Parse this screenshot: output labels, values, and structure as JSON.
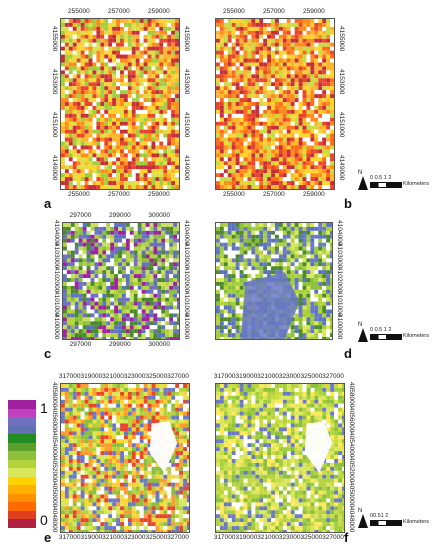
{
  "panels": [
    {
      "id": "a",
      "label": "a",
      "xticks": [
        "255000",
        "257000",
        "259000"
      ],
      "yticks": [
        "4155000",
        "4153000",
        "4151000",
        "4149000"
      ],
      "palette": "warm"
    },
    {
      "id": "b",
      "label": "b",
      "xticks": [
        "255000",
        "257000",
        "259000"
      ],
      "yticks": [
        "4155000",
        "4153000",
        "4151000",
        "4149000"
      ],
      "palette": "warm2"
    },
    {
      "id": "c",
      "label": "c",
      "xticks": [
        "297000",
        "299000",
        "300000"
      ],
      "yticks": [
        "4104000",
        "4103000",
        "4102000",
        "4101000",
        "4100000"
      ],
      "palette": "mixed"
    },
    {
      "id": "d",
      "label": "d",
      "xticks": [
        "297000",
        "299000",
        "300000"
      ],
      "yticks": [
        "4104000",
        "4103000",
        "4102000",
        "4101000",
        "4100000"
      ],
      "palette": "cool"
    },
    {
      "id": "e",
      "label": "e",
      "xticks": [
        "317000",
        "319000",
        "321000",
        "323000",
        "325000",
        "327000"
      ],
      "yticks": [
        "4058000",
        "4056000",
        "4054000",
        "4052000",
        "4050000",
        "4048000"
      ],
      "palette": "lightmix"
    },
    {
      "id": "f",
      "label": "f",
      "xticks": [
        "317000",
        "319000",
        "321000",
        "323000",
        "325000",
        "327000"
      ],
      "yticks": [
        "4058000",
        "4056000",
        "4054000",
        "4052000",
        "4050000",
        "4048000"
      ],
      "palette": "light"
    }
  ],
  "scalebars": [
    {
      "north": "N",
      "nums": "0 0.5 1    2",
      "unit": "Kilometers"
    },
    {
      "north": "N",
      "nums": "0  0.5  1    2",
      "unit": "Kilometers"
    },
    {
      "north": "N",
      "nums": "00.51     2",
      "unit": "Kilometers"
    }
  ],
  "legend": {
    "max_label": "1",
    "min_label": "0",
    "colors": [
      "#a020a0",
      "#c040c0",
      "#7070c0",
      "#6070b0",
      "#228b22",
      "#5aa02a",
      "#8cbf3a",
      "#b4d23c",
      "#d8e85a",
      "#ffd400",
      "#ffb000",
      "#ff9000",
      "#ff6a00",
      "#e04020",
      "#b02040"
    ]
  },
  "palettes": {
    "warm": [
      "#c62f3a",
      "#e8452a",
      "#ff8c1a",
      "#ffb42e",
      "#ffd42e",
      "#d6e24a",
      "#9fcf3c",
      "#ffffff"
    ],
    "warm2": [
      "#c62f3a",
      "#e8452a",
      "#ff8c1a",
      "#ffb42e",
      "#ffd42e",
      "#c8dc42",
      "#ffffff",
      "#ff6a1a"
    ],
    "mixed": [
      "#8cbf3a",
      "#b4d23c",
      "#7070c0",
      "#5a72c0",
      "#a020a0",
      "#c8e060",
      "#ffffff",
      "#4a8a2a"
    ],
    "cool": [
      "#8cbf3a",
      "#b4d23c",
      "#d8e85a",
      "#6a78c8",
      "#5a72c0",
      "#4a8a2a",
      "#ffffff",
      "#9fcf3c"
    ],
    "lightmix": [
      "#d8e85a",
      "#b4d23c",
      "#ffd42e",
      "#ff9a2e",
      "#ffffff",
      "#8cbf3a",
      "#6a78c8",
      "#e8452a"
    ],
    "light": [
      "#d8e85a",
      "#c8dc42",
      "#b4d23c",
      "#ffffff",
      "#9fcf3c",
      "#ffe85a",
      "#6a78c8",
      "#8cbf3a"
    ]
  }
}
